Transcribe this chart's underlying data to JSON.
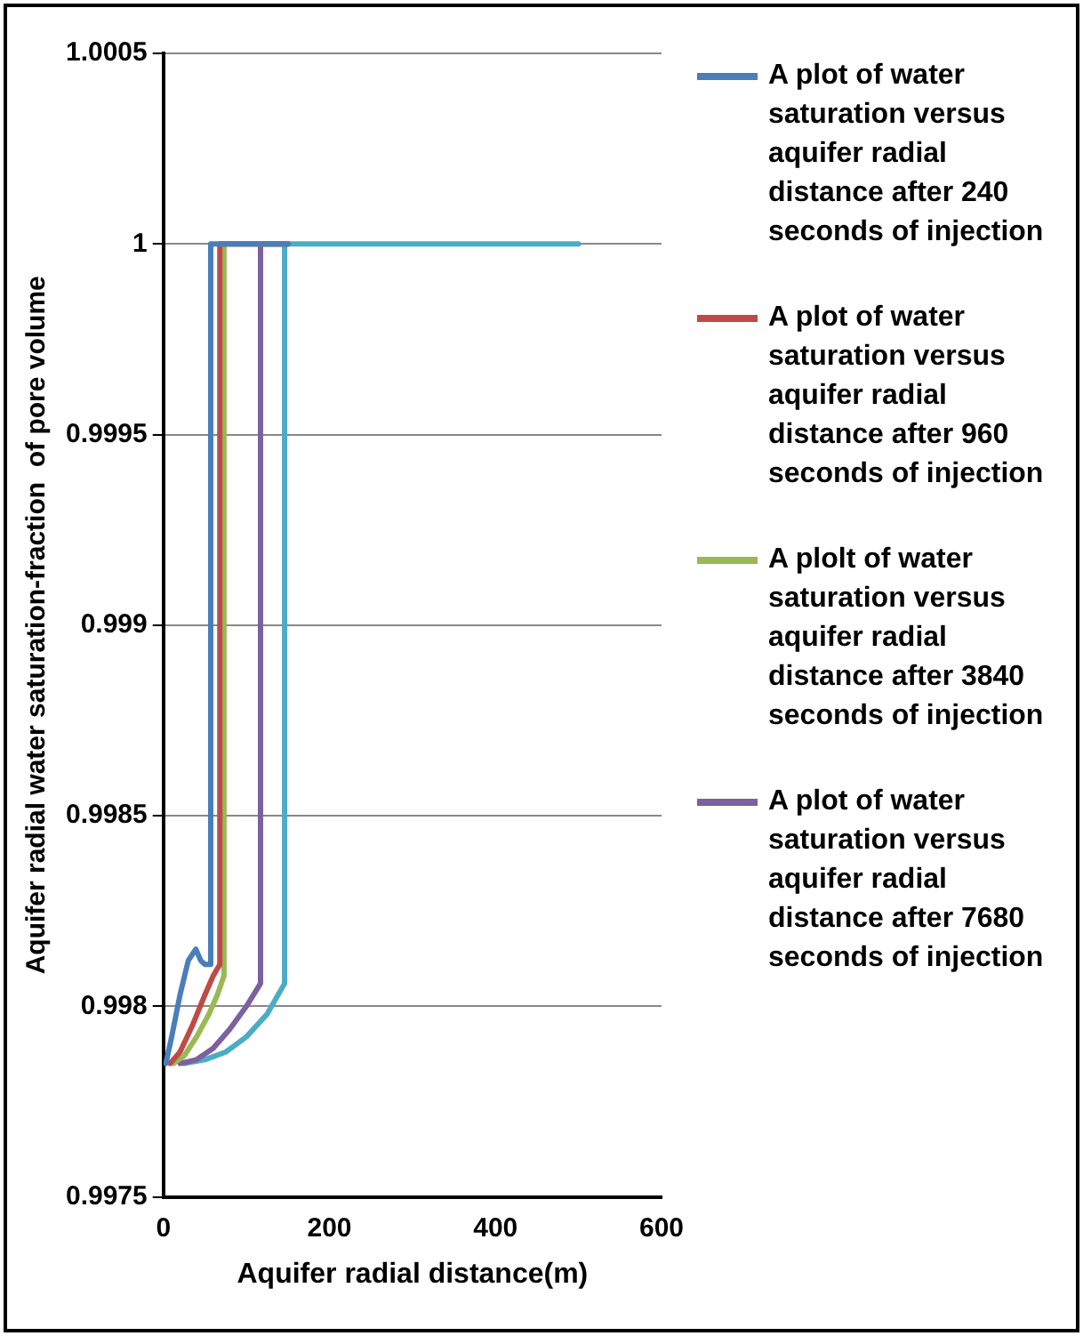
{
  "chart_data": {
    "type": "line",
    "xlabel": "Aquifer radial distance(m)",
    "ylabel": "Aquifer radial water saturation-fraction  of pore volume",
    "xlim": [
      0,
      600
    ],
    "xticks": [
      0,
      200,
      400,
      600
    ],
    "ylim": [
      0.9975,
      1.0005
    ],
    "yticks": [
      0.9975,
      0.998,
      0.9985,
      0.999,
      0.9995,
      1,
      1.0005
    ],
    "grid": "y",
    "legend": "right",
    "marker": "none",
    "line_style": "solid",
    "series": [
      {
        "name": "A plot of water saturation versus aquifer radial distance after 240 seconds of injection",
        "color": "#4a7ebb",
        "x": [
          3,
          10,
          20,
          30,
          39,
          45,
          50,
          57,
          57,
          150
        ],
        "values": [
          0.99785,
          0.99792,
          0.99803,
          0.99812,
          0.99815,
          0.99812,
          0.99811,
          0.99811,
          1,
          1
        ]
      },
      {
        "name": "A plot of water saturation versus aquifer radial distance after 960 seconds of injection",
        "color": "#be4b48",
        "x": [
          8,
          20,
          35,
          50,
          60,
          68,
          68,
          150
        ],
        "values": [
          0.99785,
          0.99788,
          0.99795,
          0.99803,
          0.99808,
          0.99811,
          1,
          1
        ]
      },
      {
        "name": "A plolt of water saturation versus aquifer radial distance after 3840 seconds of injection",
        "color": "#98b954",
        "x": [
          12,
          25,
          40,
          55,
          65,
          73,
          73,
          150
        ],
        "values": [
          0.99785,
          0.99787,
          0.99792,
          0.99798,
          0.99803,
          0.99808,
          1,
          1
        ]
      },
      {
        "name": "A plot of water saturation versus aquifer radial distance after 7680 seconds of injection",
        "color": "#7d60a0",
        "x": [
          20,
          40,
          60,
          80,
          100,
          117,
          117,
          150
        ],
        "values": [
          0.99785,
          0.99786,
          0.99789,
          0.99794,
          0.998,
          0.99806,
          1,
          1
        ]
      },
      {
        "color": "#4bacc6",
        "x": [
          25,
          50,
          75,
          100,
          125,
          146,
          146,
          500
        ],
        "values": [
          0.99785,
          0.99786,
          0.99788,
          0.99792,
          0.99798,
          0.99806,
          1,
          1
        ]
      }
    ]
  }
}
